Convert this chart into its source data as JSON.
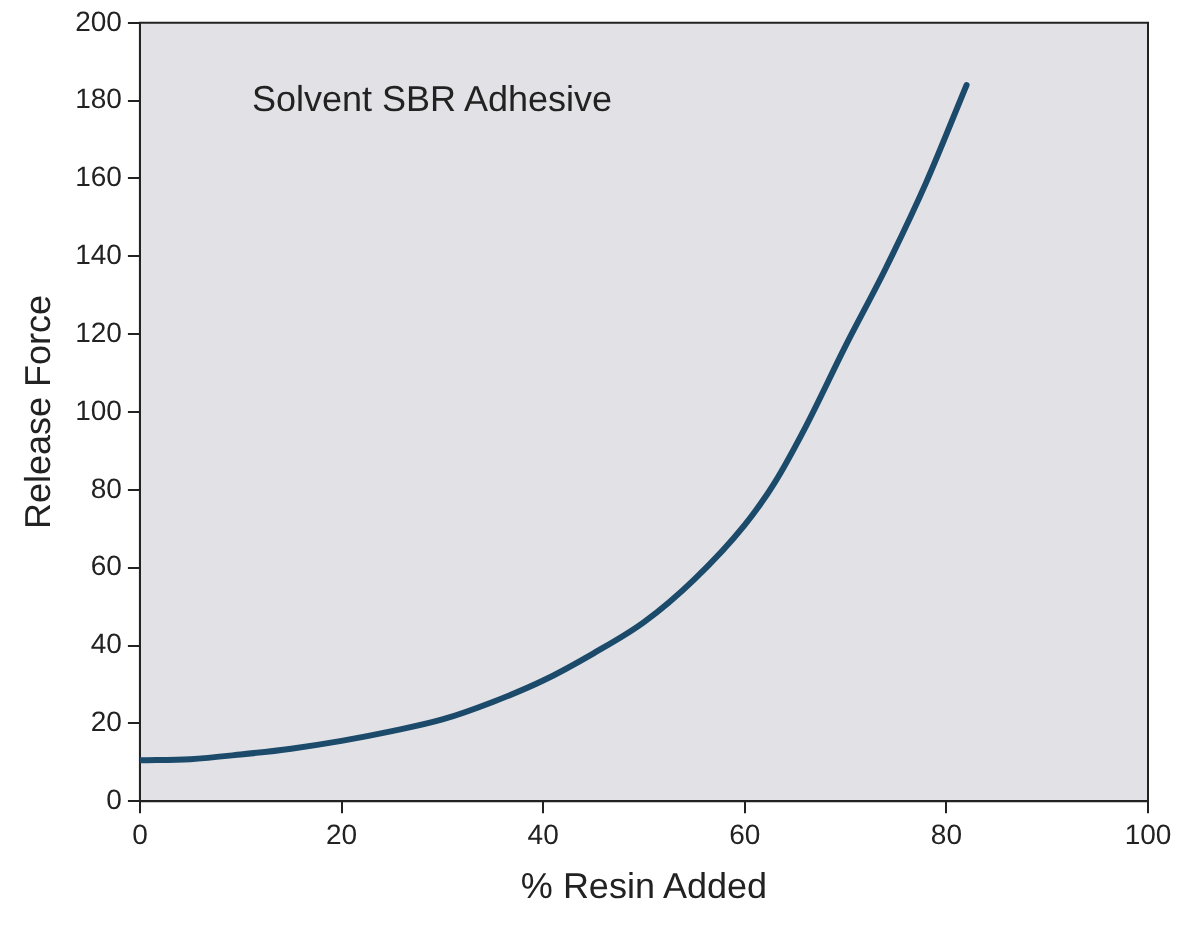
{
  "chart_data": {
    "type": "line",
    "xlabel": "% Resin Added",
    "ylabel": "Release Force",
    "annotations": [
      "Solvent SBR Adhesive"
    ],
    "x": [
      0,
      5,
      10,
      15,
      20,
      25,
      30,
      35,
      40,
      45,
      50,
      55,
      60,
      63,
      66,
      70,
      74,
      78,
      82
    ],
    "series": [
      {
        "color": "#1b4a6b",
        "values": [
          10.5,
          10.8,
          12,
          13.5,
          15.5,
          18,
          21,
          25.5,
          31,
          38,
          46,
          57,
          71,
          82,
          96,
          117,
          137,
          159,
          184
        ]
      }
    ],
    "xlim": [
      0,
      100
    ],
    "xticks": [
      0,
      20,
      40,
      60,
      80,
      100
    ],
    "ylim": [
      0,
      200
    ],
    "yticks": [
      0,
      20,
      40,
      60,
      80,
      100,
      120,
      140,
      160,
      180,
      200
    ],
    "grid": false,
    "legend": false,
    "marker": "none",
    "line_style": "solid"
  }
}
